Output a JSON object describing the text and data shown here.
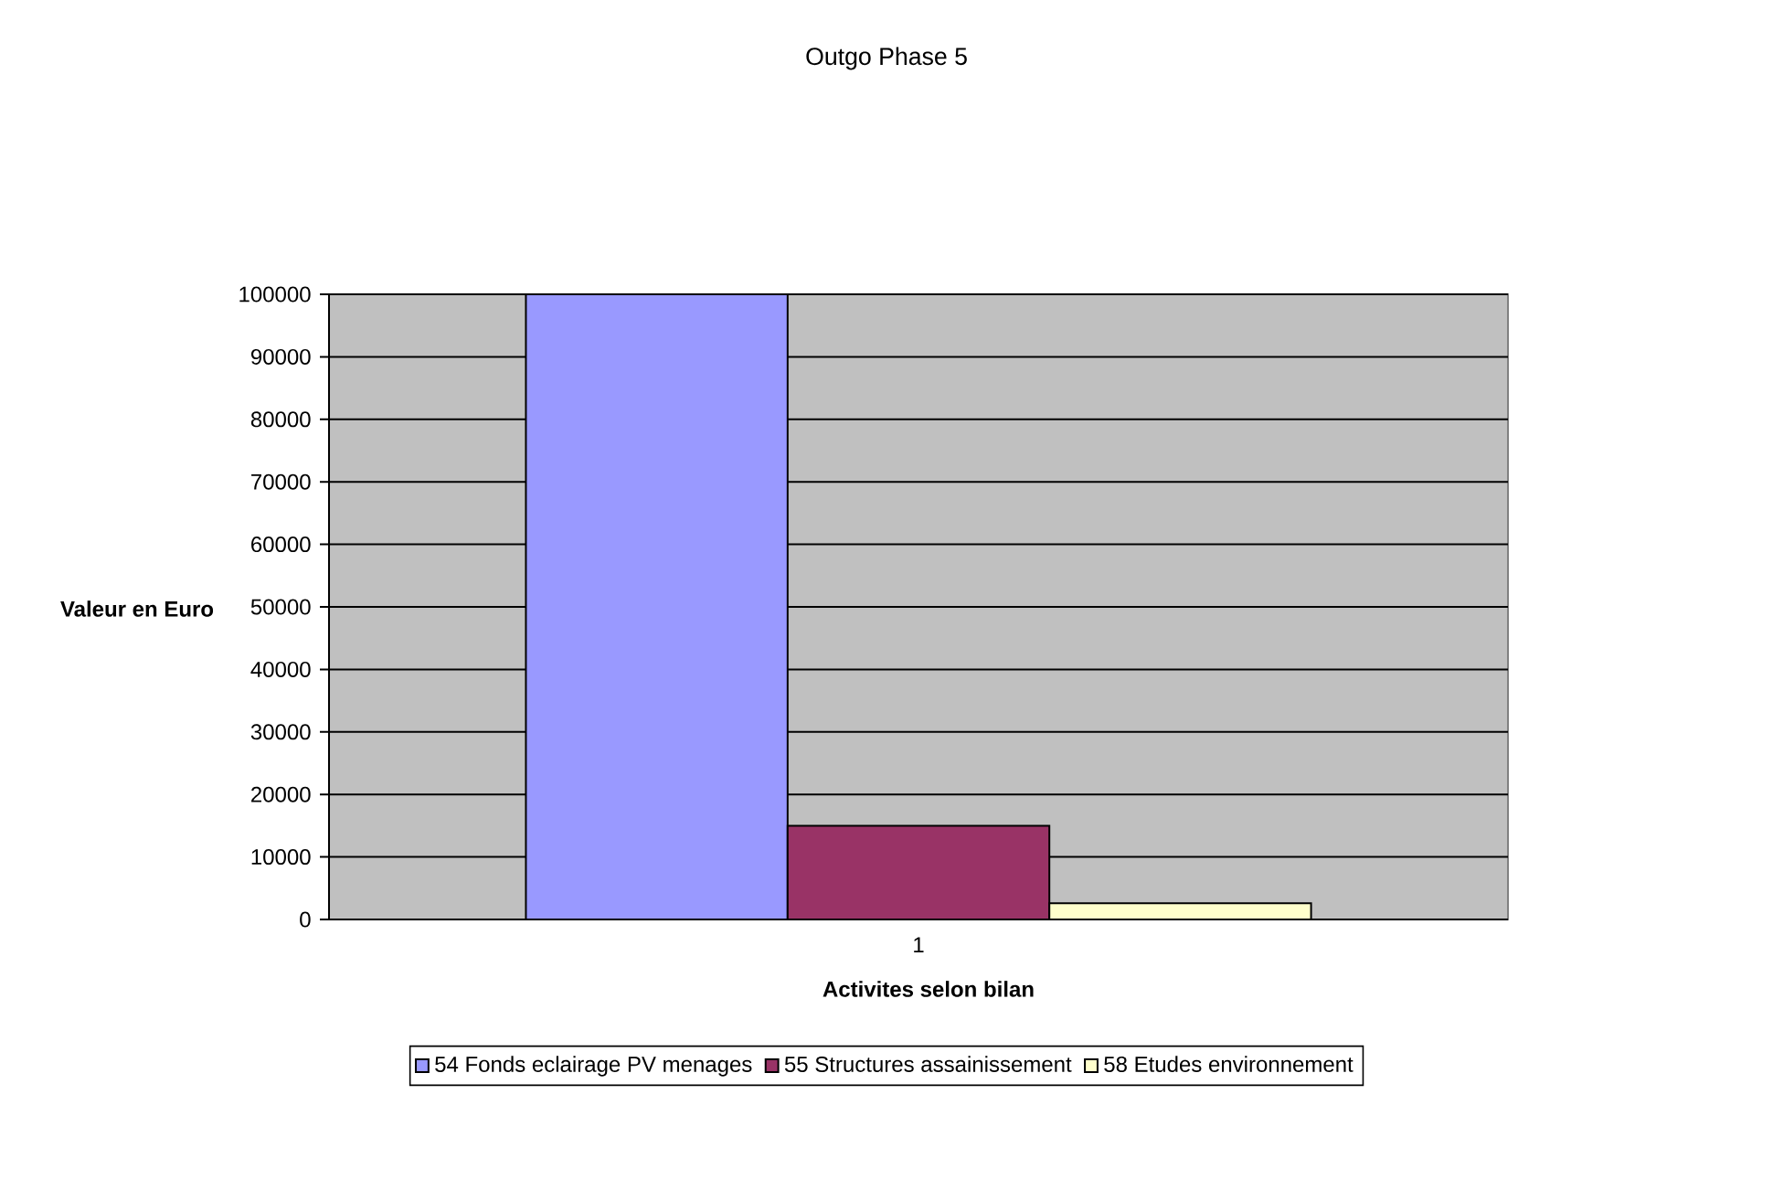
{
  "chart_data": {
    "type": "bar",
    "title": "Outgo Phase 5",
    "xlabel": "Activites selon bilan",
    "ylabel": "Valeur en Euro",
    "categories": [
      "1"
    ],
    "series": [
      {
        "name": "54 Fonds eclairage PV menages",
        "color": "#9999ff",
        "values": [
          100000
        ]
      },
      {
        "name": "55 Structures assainissement",
        "color": "#993366",
        "values": [
          15000
        ]
      },
      {
        "name": "58 Etudes environnement",
        "color": "#ffffcc",
        "values": [
          2600
        ]
      }
    ],
    "ylim": [
      0,
      100000
    ],
    "yticks": [
      0,
      10000,
      20000,
      30000,
      40000,
      50000,
      60000,
      70000,
      80000,
      90000,
      100000
    ],
    "grid": "y",
    "legend": "bottom"
  }
}
